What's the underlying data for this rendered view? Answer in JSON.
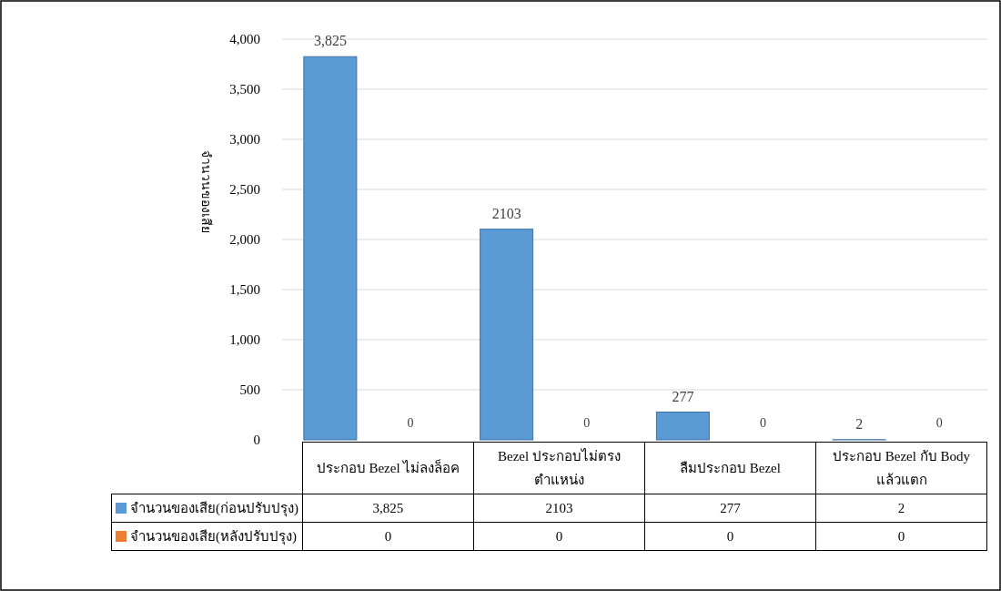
{
  "chart_data": {
    "type": "bar",
    "ylabel": "จำนวนของเสีย",
    "categories": [
      "ประกอบ Bezel ไม่ลงล็อค",
      "Bezel ประกอบไม่ตรงตำแหน่ง",
      "ลืมประกอบ Bezel",
      "ประกอบ Bezel กับ Body แล้วแตก"
    ],
    "series": [
      {
        "name": "จำนวนของเสีย(ก่อนปรับปรุง)",
        "color": "#5b9bd5",
        "values": [
          3825,
          2103,
          277,
          2
        ],
        "value_labels": [
          "3,825",
          "2103",
          "277",
          "2"
        ]
      },
      {
        "name": "จำนวนของเสีย(หลังปรับปรุง)",
        "color": "#ed7d31",
        "values": [
          0,
          0,
          0,
          0
        ],
        "value_labels": [
          "0",
          "0",
          "0",
          "0"
        ]
      }
    ],
    "ylim": [
      0,
      4000
    ],
    "yticks": [
      {
        "value": 0,
        "label": "0"
      },
      {
        "value": 500,
        "label": "500"
      },
      {
        "value": 1000,
        "label": "1,000"
      },
      {
        "value": 1500,
        "label": "1,500"
      },
      {
        "value": 2000,
        "label": "2,000"
      },
      {
        "value": 2500,
        "label": "2,500"
      },
      {
        "value": 3000,
        "label": "3,000"
      },
      {
        "value": 3500,
        "label": "3,500"
      },
      {
        "value": 4000,
        "label": "4,000"
      }
    ],
    "grid": "y",
    "legend": "bottom"
  }
}
